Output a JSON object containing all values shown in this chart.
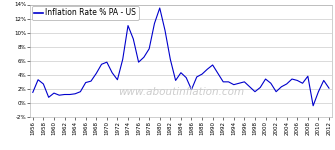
{
  "title": "Inflation Rate % PA - US",
  "years": [
    1956,
    1957,
    1958,
    1959,
    1960,
    1961,
    1962,
    1963,
    1964,
    1965,
    1966,
    1967,
    1968,
    1969,
    1970,
    1971,
    1972,
    1973,
    1974,
    1975,
    1976,
    1977,
    1978,
    1979,
    1980,
    1981,
    1982,
    1983,
    1984,
    1985,
    1986,
    1987,
    1988,
    1989,
    1990,
    1991,
    1992,
    1993,
    1994,
    1995,
    1996,
    1997,
    1998,
    1999,
    2000,
    2001,
    2002,
    2003,
    2004,
    2005,
    2006,
    2007,
    2008,
    2009,
    2010,
    2011,
    2012
  ],
  "values": [
    1.5,
    3.3,
    2.7,
    0.8,
    1.4,
    1.1,
    1.2,
    1.2,
    1.3,
    1.6,
    2.9,
    3.1,
    4.2,
    5.5,
    5.8,
    4.3,
    3.3,
    6.2,
    11.0,
    9.1,
    5.8,
    6.5,
    7.7,
    11.3,
    13.5,
    10.3,
    6.2,
    3.2,
    4.3,
    3.6,
    1.9,
    3.7,
    4.1,
    4.8,
    5.4,
    4.2,
    3.0,
    3.0,
    2.6,
    2.8,
    3.0,
    2.3,
    1.6,
    2.2,
    3.4,
    2.8,
    1.6,
    2.3,
    2.7,
    3.4,
    3.2,
    2.8,
    3.8,
    -0.4,
    1.6,
    3.2,
    2.1
  ],
  "line_color": "#0000cc",
  "bg_color": "#ffffff",
  "grid_color": "#cccccc",
  "watermark": "www.aboutinflation.com",
  "watermark_color": "#cccccc",
  "ylim": [
    -2,
    14
  ],
  "yticks": [
    -2,
    0,
    2,
    4,
    6,
    8,
    10,
    12,
    14
  ],
  "ytick_labels": [
    "-2%",
    "0%",
    "2%",
    "4%",
    "6%",
    "8%",
    "10%",
    "12%",
    "14%"
  ],
  "legend_fontsize": 5.5,
  "tick_fontsize": 4.0,
  "watermark_fontsize": 7.5,
  "linewidth": 0.8
}
